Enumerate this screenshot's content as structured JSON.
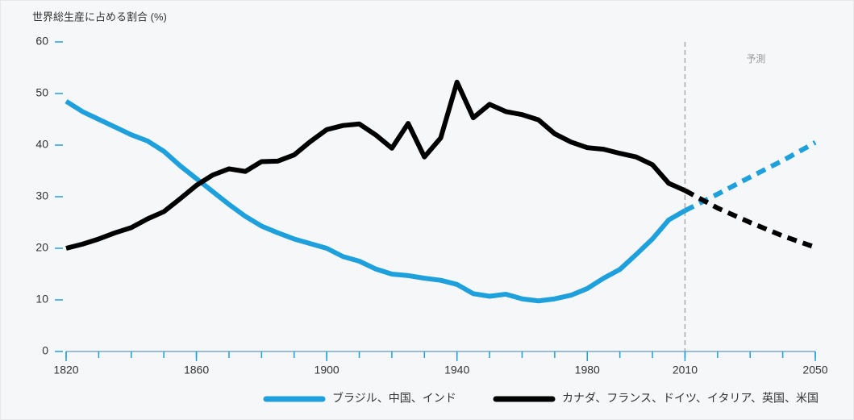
{
  "chart_data": {
    "type": "line",
    "y_axis_label": "世界総生産に占める割合 (%)",
    "annotation": "予測",
    "forecast_start": 2010,
    "x": [
      1820,
      1825,
      1830,
      1835,
      1840,
      1845,
      1850,
      1855,
      1860,
      1865,
      1870,
      1875,
      1880,
      1885,
      1890,
      1895,
      1900,
      1905,
      1910,
      1915,
      1920,
      1925,
      1930,
      1935,
      1940,
      1945,
      1950,
      1955,
      1960,
      1965,
      1970,
      1975,
      1980,
      1985,
      1990,
      1995,
      2000,
      2005,
      2010
    ],
    "forecast_x": [
      2010,
      2020,
      2030,
      2040,
      2050
    ],
    "series": [
      {
        "name": "ブラジル、中国、インド",
        "color": "#1ea0dc",
        "values": [
          48.5,
          46.5,
          45,
          43.5,
          42,
          40.8,
          38.8,
          36,
          33.5,
          31,
          28.5,
          26.2,
          24.3,
          23,
          21.8,
          20.9,
          20,
          18.4,
          17.5,
          16,
          15,
          14.7,
          14.2,
          13.8,
          13,
          11.2,
          10.7,
          11.1,
          10.2,
          9.8,
          10.2,
          10.9,
          12.2,
          14.2,
          15.9,
          18.8,
          21.8,
          25.5,
          27.3
        ],
        "forecast_values": [
          27.3,
          30.5,
          33.8,
          37,
          40.5
        ]
      },
      {
        "name": "カナダ、フランス、ドイツ、イタリア、英国、米国",
        "color": "#000000",
        "values": [
          20,
          20.8,
          21.8,
          23,
          24,
          25.7,
          27.1,
          29.6,
          32.2,
          34.2,
          35.4,
          34.9,
          36.8,
          36.9,
          38.1,
          40.7,
          43,
          43.8,
          44.1,
          42,
          39.4,
          44.2,
          37.7,
          41.4,
          52.2,
          45.3,
          47.9,
          46.5,
          45.9,
          44.9,
          42.2,
          40.6,
          39.5,
          39.2,
          38.4,
          37.7,
          36.2,
          32.6,
          31.2
        ],
        "forecast_values": [
          31.2,
          27.8,
          25,
          22.4,
          20.2
        ]
      }
    ],
    "xlim": [
      1820,
      2050
    ],
    "xticks": [
      1820,
      1860,
      1900,
      1940,
      1980,
      2010,
      2050
    ],
    "xminor_ticks": [
      1820,
      1830,
      1840,
      1850,
      1860,
      1870,
      1880,
      1890,
      1900,
      1910,
      1920,
      1930,
      1940,
      1950,
      1960,
      1970,
      1980,
      1990,
      2000,
      2010,
      2020,
      2030,
      2040,
      2050
    ],
    "ylim": [
      0,
      60
    ],
    "yticks": [
      0,
      10,
      20,
      30,
      40,
      50,
      60
    ],
    "grid": false
  }
}
